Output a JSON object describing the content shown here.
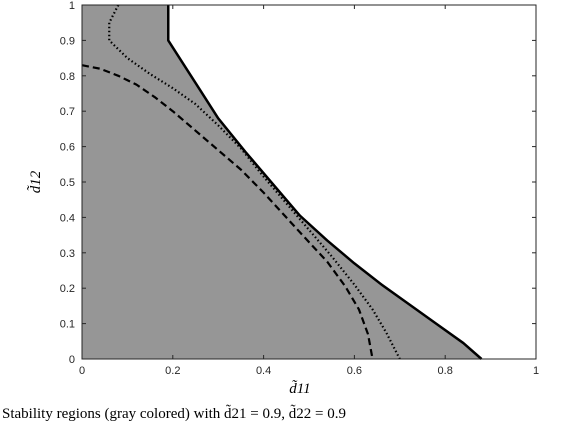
{
  "chart_data": {
    "type": "area",
    "xlabel": "d̃11",
    "ylabel": "d̃12",
    "xlim": [
      0,
      1
    ],
    "ylim": [
      0,
      1
    ],
    "xticks": [
      0,
      0.2,
      0.4,
      0.6,
      0.8,
      1
    ],
    "yticks": [
      0,
      0.1,
      0.2,
      0.3,
      0.4,
      0.5,
      0.6,
      0.7,
      0.8,
      0.9,
      1
    ],
    "xtick_labels": [
      "0",
      "0.2",
      "0.4",
      "0.6",
      "0.8",
      "1"
    ],
    "ytick_labels": [
      "0",
      "0.1",
      "0.2",
      "0.3",
      "0.4",
      "0.5",
      "0.6",
      "0.7",
      "0.8",
      "0.9",
      "1"
    ],
    "grid": false,
    "region_color": "#969696",
    "series": [
      {
        "style": "solid",
        "x": [
          0.19,
          0.19,
          0.22,
          0.26,
          0.3,
          0.36,
          0.42,
          0.48,
          0.54,
          0.6,
          0.66,
          0.72,
          0.78,
          0.84,
          0.88
        ],
        "y": [
          1.0,
          0.9,
          0.84,
          0.76,
          0.68,
          0.585,
          0.495,
          0.405,
          0.335,
          0.27,
          0.21,
          0.155,
          0.1,
          0.045,
          0.0
        ]
      },
      {
        "style": "dotted",
        "x": [
          0.08,
          0.06,
          0.06,
          0.1,
          0.15,
          0.2,
          0.25,
          0.3,
          0.35,
          0.4,
          0.45,
          0.5,
          0.55,
          0.6,
          0.64,
          0.67,
          0.7
        ],
        "y": [
          1.0,
          0.95,
          0.9,
          0.85,
          0.805,
          0.765,
          0.72,
          0.66,
          0.595,
          0.515,
          0.44,
          0.365,
          0.29,
          0.21,
          0.14,
          0.075,
          0.0
        ]
      },
      {
        "style": "dashed",
        "x": [
          0.0,
          0.04,
          0.08,
          0.12,
          0.16,
          0.2,
          0.25,
          0.3,
          0.35,
          0.4,
          0.45,
          0.5,
          0.54,
          0.58,
          0.61,
          0.63,
          0.64
        ],
        "y": [
          0.83,
          0.82,
          0.8,
          0.775,
          0.74,
          0.7,
          0.645,
          0.59,
          0.535,
          0.47,
          0.4,
          0.33,
          0.275,
          0.205,
          0.14,
          0.07,
          0.0
        ]
      }
    ]
  },
  "caption": {
    "text": "Stability regions (gray colored) with d̃21 = 0.9, d̃22 = 0.9"
  }
}
